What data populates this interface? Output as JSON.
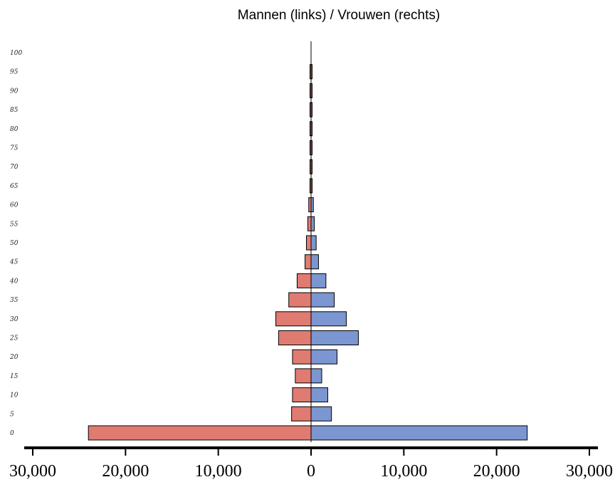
{
  "chart_data": {
    "type": "bar",
    "title": "Mannen (links) / Vrouwen (rechts)",
    "xlabel": "",
    "ylabel": "",
    "orientation": "horizontal-population-pyramid",
    "categories": [
      "0",
      "5",
      "10",
      "15",
      "20",
      "25",
      "30",
      "35",
      "40",
      "45",
      "50",
      "55",
      "60",
      "65",
      "70",
      "75",
      "80",
      "85",
      "90",
      "95",
      "100"
    ],
    "series": [
      {
        "values": [
          24000,
          2100,
          2000,
          1700,
          2000,
          3500,
          3800,
          2400,
          1500,
          650,
          500,
          350,
          250,
          120,
          80,
          70,
          60,
          50,
          60,
          50,
          0
        ]
      },
      {
        "values": [
          23300,
          2200,
          1800,
          1150,
          2800,
          5100,
          3800,
          2500,
          1600,
          800,
          550,
          350,
          250,
          120,
          80,
          70,
          60,
          50,
          60,
          50,
          0
        ]
      }
    ],
    "series_colors": [
      "#e07b72",
      "#7b96d0"
    ],
    "xticks": [
      "30,000",
      "20,000",
      "10,000",
      "0",
      "10,000",
      "20,000",
      "30,000"
    ],
    "xlim": [
      -30000,
      30000
    ],
    "grid": false
  }
}
